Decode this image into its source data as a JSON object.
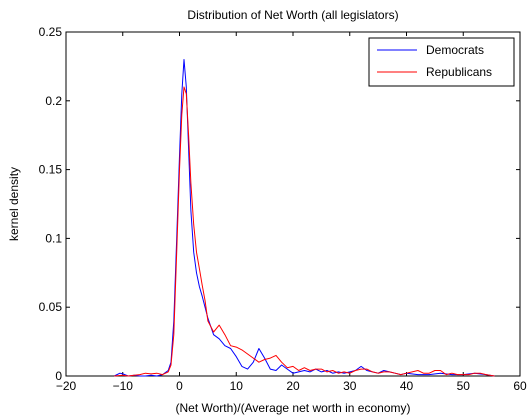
{
  "chart_data": {
    "type": "line",
    "title": "Distribution of Net Worth (all legislators)",
    "xlabel": "(Net Worth)/(Average net worth in economy)",
    "ylabel": "kernel density",
    "xlim": [
      -20,
      60
    ],
    "ylim": [
      0,
      0.25
    ],
    "xticks": [
      -20,
      -10,
      0,
      10,
      20,
      30,
      40,
      50,
      60
    ],
    "yticks": [
      0,
      0.05,
      0.1,
      0.15,
      0.2,
      0.25
    ],
    "xtick_labels": [
      "−20",
      "−10",
      "0",
      "10",
      "20",
      "30",
      "40",
      "50",
      "60"
    ],
    "ytick_labels": [
      "0",
      "0.05",
      "0.1",
      "0.15",
      "0.2",
      "0.25"
    ],
    "grid": false,
    "legend_position": "top-right",
    "series": [
      {
        "name": "Democrats",
        "color": "#0000ff",
        "x": [
          -11.5,
          -10.5,
          -10,
          -9,
          -8,
          -7,
          -6,
          -5,
          -4,
          -3,
          -2,
          -1.5,
          -1,
          -0.5,
          0,
          0.4,
          0.8,
          1.2,
          1.6,
          2,
          2.5,
          3,
          3.5,
          4,
          5,
          6,
          7,
          8,
          9,
          10,
          11,
          12,
          13,
          14,
          15,
          16,
          17,
          18,
          19,
          20,
          21,
          22,
          23,
          24,
          25,
          26,
          27,
          28,
          29,
          30,
          31,
          32,
          33,
          34,
          35,
          36,
          37,
          38,
          39,
          40,
          42,
          44,
          46,
          48,
          50,
          52,
          54,
          55.5
        ],
        "y": [
          0,
          0.002,
          0.0015,
          0,
          0.0005,
          0,
          0,
          0.0005,
          0,
          0.001,
          0.004,
          0.01,
          0.04,
          0.1,
          0.16,
          0.205,
          0.23,
          0.21,
          0.165,
          0.12,
          0.09,
          0.075,
          0.065,
          0.058,
          0.042,
          0.03,
          0.027,
          0.022,
          0.02,
          0.014,
          0.007,
          0.005,
          0.01,
          0.02,
          0.013,
          0.005,
          0.004,
          0.008,
          0.005,
          0.002,
          0.003,
          0.004,
          0.003,
          0.005,
          0.003,
          0.004,
          0.002,
          0.003,
          0.002,
          0.003,
          0.004,
          0.007,
          0.004,
          0.003,
          0.002,
          0.004,
          0.003,
          0.002,
          0.001,
          0.002,
          0.001,
          0.001,
          0.002,
          0.001,
          0.001,
          0.002,
          0.001,
          0
        ]
      },
      {
        "name": "Republicans",
        "color": "#ff0000",
        "x": [
          -11.5,
          -10,
          -9,
          -8,
          -7,
          -6,
          -5,
          -4,
          -3,
          -2,
          -1.5,
          -1,
          -0.5,
          0,
          0.4,
          0.8,
          1.2,
          1.6,
          2,
          2.5,
          3,
          3.5,
          4,
          4.5,
          5,
          6,
          7,
          8,
          9,
          10,
          11,
          12,
          13,
          14,
          15,
          16,
          17,
          18,
          19,
          20,
          21,
          22,
          23,
          24,
          25,
          26,
          27,
          28,
          29,
          30,
          31,
          32,
          33,
          34,
          35,
          36,
          37,
          38,
          39,
          40,
          41,
          42,
          43,
          44,
          45,
          46,
          47,
          48,
          49,
          50,
          51,
          52,
          53,
          54,
          55.5
        ],
        "y": [
          0,
          0.0005,
          0,
          0.0005,
          0.001,
          0.002,
          0.0015,
          0.002,
          0.001,
          0.003,
          0.008,
          0.03,
          0.09,
          0.15,
          0.19,
          0.21,
          0.205,
          0.175,
          0.14,
          0.11,
          0.09,
          0.078,
          0.066,
          0.055,
          0.04,
          0.032,
          0.037,
          0.03,
          0.022,
          0.021,
          0.019,
          0.016,
          0.013,
          0.01,
          0.012,
          0.013,
          0.015,
          0.01,
          0.006,
          0.007,
          0.004,
          0.006,
          0.004,
          0.005,
          0.005,
          0.003,
          0.004,
          0.002,
          0.003,
          0.002,
          0.004,
          0.005,
          0.005,
          0.003,
          0.002,
          0.003,
          0.003,
          0.002,
          0.001,
          0.002,
          0.003,
          0.004,
          0.002,
          0.002,
          0.004,
          0.004,
          0.001,
          0.002,
          0.001,
          0.001,
          0.001,
          0.002,
          0.002,
          0.001,
          0
        ]
      }
    ]
  }
}
